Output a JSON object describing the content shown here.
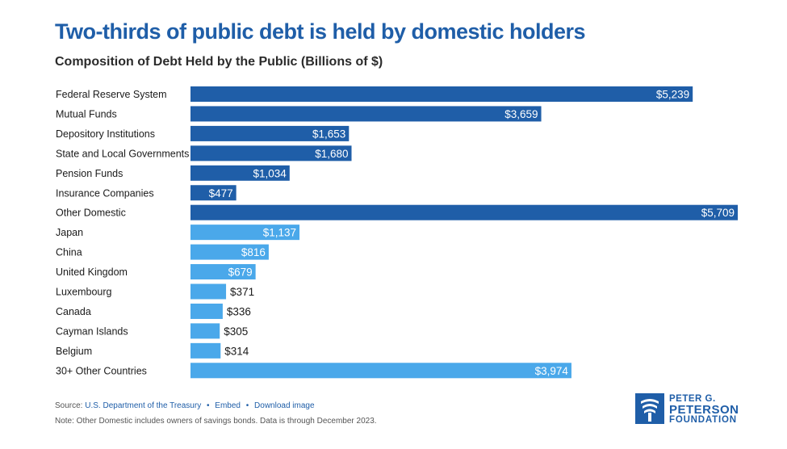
{
  "title": "Two-thirds of public debt is held by domestic holders",
  "subtitle": "Composition of Debt Held by the Public (Billions of $)",
  "colors": {
    "domestic": "#1f5ea8",
    "foreign": "#4aa8ea",
    "title": "#1f5ea8"
  },
  "chart_data": {
    "type": "bar",
    "orientation": "horizontal",
    "title": "",
    "xlabel": "",
    "ylabel": "",
    "unit": "Billions of $",
    "categories": [
      "Federal Reserve System",
      "Mutual Funds",
      "Depository Institutions",
      "State and Local Governments",
      "Pension Funds",
      "Insurance Companies",
      "Other Domestic",
      "Japan",
      "China",
      "United Kingdom",
      "Luxembourg",
      "Canada",
      "Cayman Islands",
      "Belgium",
      "30+ Other Countries"
    ],
    "values": [
      5239,
      3659,
      1653,
      1680,
      1034,
      477,
      5709,
      1137,
      816,
      679,
      371,
      336,
      305,
      314,
      3974
    ],
    "labels": [
      "$5,239",
      "$3,659",
      "$1,653",
      "$1,680",
      "$1,034",
      "$477",
      "$5,709",
      "$1,137",
      "$816",
      "$679",
      "$371",
      "$336",
      "$305",
      "$314",
      "$3,974"
    ],
    "groups": [
      "domestic",
      "domestic",
      "domestic",
      "domestic",
      "domestic",
      "domestic",
      "domestic",
      "foreign",
      "foreign",
      "foreign",
      "foreign",
      "foreign",
      "foreign",
      "foreign",
      "foreign"
    ],
    "xlim": [
      0,
      5709
    ],
    "grid": false,
    "legend": "none"
  },
  "footer": {
    "source_prefix": "Source:",
    "source_link": "U.S. Department of the Treasury",
    "embed": "Embed",
    "download": "Download image",
    "bullet": "•",
    "note": "Note: Other Domestic includes owners of savings bonds. Data is through December 2023."
  },
  "logo": {
    "line1": "PETER G.",
    "line2": "PETERSON",
    "line3": "FOUNDATION",
    "icon": "torch-flame-icon"
  }
}
